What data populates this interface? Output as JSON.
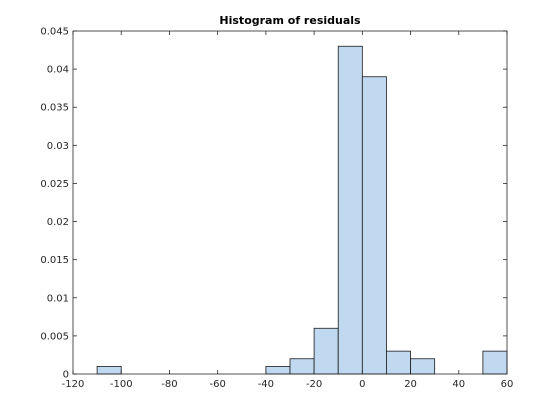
{
  "chart_data": {
    "type": "bar",
    "title": "Histogram of residuals",
    "xlabel": "",
    "ylabel": "",
    "xlim": [
      -120,
      60
    ],
    "ylim": [
      0,
      0.045
    ],
    "bin_width": 10,
    "grid": false,
    "bins": [
      {
        "left": -110,
        "right": -100,
        "value": 0.001
      },
      {
        "left": -40,
        "right": -30,
        "value": 0.001
      },
      {
        "left": -30,
        "right": -20,
        "value": 0.002
      },
      {
        "left": -20,
        "right": -10,
        "value": 0.006
      },
      {
        "left": -10,
        "right": 0,
        "value": 0.043
      },
      {
        "left": 0,
        "right": 10,
        "value": 0.039
      },
      {
        "left": 10,
        "right": 20,
        "value": 0.003
      },
      {
        "left": 20,
        "right": 30,
        "value": 0.002
      },
      {
        "left": 50,
        "right": 60,
        "value": 0.003
      }
    ],
    "x_ticks": [
      "-120",
      "-100",
      "-80",
      "-60",
      "-40",
      "-20",
      "0",
      "20",
      "40",
      "60"
    ],
    "y_ticks": [
      "0",
      "0.005",
      "0.01",
      "0.015",
      "0.02",
      "0.025",
      "0.03",
      "0.035",
      "0.04",
      "0.045"
    ],
    "colors": {
      "bar_fill": "#c0d9f0",
      "bar_edge": "#1a1a1a",
      "axis": "#262626"
    }
  }
}
